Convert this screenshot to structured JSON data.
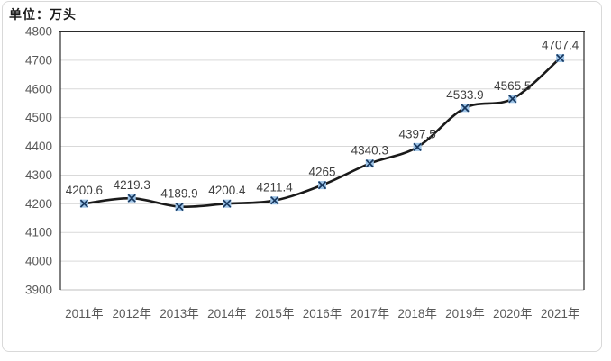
{
  "chart_data": {
    "type": "line",
    "unit_label": "单位：万头",
    "categories": [
      "2011年",
      "2012年",
      "2013年",
      "2014年",
      "2015年",
      "2016年",
      "2017年",
      "2018年",
      "2019年",
      "2020年",
      "2021年"
    ],
    "values": [
      4200.6,
      4219.3,
      4189.9,
      4200.4,
      4211.4,
      4265,
      4340.3,
      4397.5,
      4533.9,
      4565.5,
      4707.4
    ],
    "data_labels": [
      "4200.6",
      "4219.3",
      "4189.9",
      "4200.4",
      "4211.4",
      "4265",
      "4340.3",
      "4397.5",
      "4533.9",
      "4565.5",
      "4707.4"
    ],
    "title": "",
    "xlabel": "",
    "ylabel": "",
    "ylim": [
      3900,
      4800
    ],
    "ytick_step": 100,
    "yticks": [
      "3900",
      "4000",
      "4100",
      "4200",
      "4300",
      "4400",
      "4500",
      "4600",
      "4700",
      "4800"
    ],
    "grid": true,
    "smoothed": true,
    "legend": "none",
    "colors": {
      "line": "#1a1a1a",
      "marker_fill": "#9dc3e6",
      "marker_cross": "#17375e",
      "gridline": "#d9d9d9",
      "axis_line": "#bfbfbf",
      "plot_border": "#2b2b2b",
      "axis_text": "#595959",
      "label_text": "#404040"
    }
  }
}
